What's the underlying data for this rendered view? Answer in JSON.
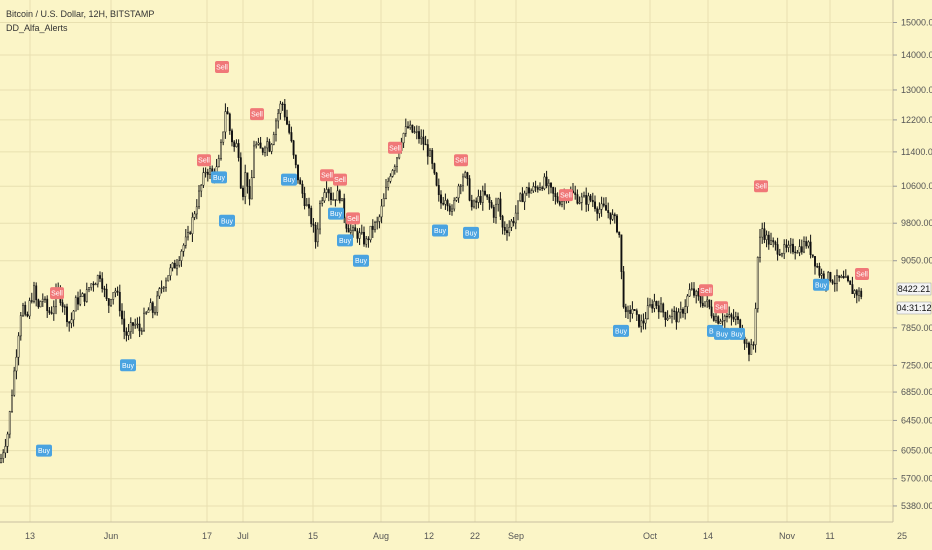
{
  "header": {
    "symbol_line": "Bitcoin / U.S. Dollar, 12H, BITSTAMP",
    "indicator": "DD_Alfa_Alerts"
  },
  "price_axis": {
    "last_price": "8422.21",
    "countdown": "04:31:12"
  },
  "colors": {
    "background": "#fbf5c7",
    "grid": "#e8e0b0",
    "candle": "#111111",
    "sell": "#f07878",
    "buy": "#4aa3e0",
    "last_price_bg": "#f4f4f4"
  },
  "chart_data": {
    "type": "candlestick",
    "title": "Bitcoin / U.S. Dollar, 12H, BITSTAMP",
    "y_ticks": [
      5380,
      5700,
      6050,
      6450,
      6850,
      7250,
      7850,
      8422.21,
      9050,
      9800,
      10600,
      11400,
      12200,
      13000,
      14000,
      15000
    ],
    "ylim": [
      5200,
      15600
    ],
    "y_scale": "log",
    "x_ticks": [
      "13",
      "Jun",
      "17",
      "Jul",
      "15",
      "Aug",
      "12",
      "22",
      "Sep",
      "Oct",
      "14",
      "Nov",
      "11",
      "25"
    ],
    "grid": true,
    "anchors": [
      [
        0,
        5900
      ],
      [
        8,
        6300
      ],
      [
        16,
        7400
      ],
      [
        22,
        8300
      ],
      [
        26,
        7900
      ],
      [
        30,
        8300
      ],
      [
        34,
        8500
      ],
      [
        38,
        8150
      ],
      [
        42,
        8400
      ],
      [
        48,
        8100
      ],
      [
        52,
        8150
      ],
      [
        58,
        8500
      ],
      [
        62,
        8300
      ],
      [
        66,
        8100
      ],
      [
        70,
        7900
      ],
      [
        76,
        8300
      ],
      [
        80,
        8350
      ],
      [
        86,
        8400
      ],
      [
        90,
        8600
      ],
      [
        96,
        8700
      ],
      [
        100,
        8800
      ],
      [
        104,
        8500
      ],
      [
        108,
        8200
      ],
      [
        112,
        8500
      ],
      [
        116,
        8500
      ],
      [
        120,
        8200
      ],
      [
        124,
        7800
      ],
      [
        128,
        7700
      ],
      [
        132,
        7900
      ],
      [
        136,
        7900
      ],
      [
        140,
        7800
      ],
      [
        144,
        8000
      ],
      [
        150,
        8200
      ],
      [
        154,
        8100
      ],
      [
        160,
        8500
      ],
      [
        168,
        8800
      ],
      [
        176,
        9000
      ],
      [
        182,
        9300
      ],
      [
        188,
        9500
      ],
      [
        194,
        10000
      ],
      [
        200,
        10500
      ],
      [
        206,
        11000
      ],
      [
        212,
        10900
      ],
      [
        218,
        11000
      ],
      [
        222,
        11700
      ],
      [
        226,
        12600
      ],
      [
        230,
        11900
      ],
      [
        234,
        11500
      ],
      [
        238,
        11600
      ],
      [
        242,
        10300
      ],
      [
        246,
        11000
      ],
      [
        250,
        10100
      ],
      [
        254,
        11600
      ],
      [
        258,
        11500
      ],
      [
        262,
        11400
      ],
      [
        266,
        11700
      ],
      [
        270,
        11500
      ],
      [
        276,
        12200
      ],
      [
        282,
        12700
      ],
      [
        286,
        12200
      ],
      [
        290,
        11800
      ],
      [
        294,
        11200
      ],
      [
        300,
        10600
      ],
      [
        306,
        10200
      ],
      [
        312,
        9800
      ],
      [
        316,
        9400
      ],
      [
        320,
        10200
      ],
      [
        326,
        10700
      ],
      [
        332,
        10300
      ],
      [
        336,
        10400
      ],
      [
        340,
        10400
      ],
      [
        346,
        9800
      ],
      [
        352,
        9600
      ],
      [
        356,
        9600
      ],
      [
        362,
        9500
      ],
      [
        366,
        9400
      ],
      [
        372,
        9700
      ],
      [
        378,
        9800
      ],
      [
        384,
        10300
      ],
      [
        390,
        10900
      ],
      [
        396,
        11200
      ],
      [
        402,
        11800
      ],
      [
        408,
        12000
      ],
      [
        412,
        11900
      ],
      [
        418,
        11800
      ],
      [
        424,
        11600
      ],
      [
        430,
        11300
      ],
      [
        436,
        10600
      ],
      [
        440,
        10200
      ],
      [
        446,
        10400
      ],
      [
        452,
        10000
      ],
      [
        458,
        10600
      ],
      [
        464,
        10900
      ],
      [
        468,
        10600
      ],
      [
        472,
        10100
      ],
      [
        478,
        10300
      ],
      [
        484,
        10400
      ],
      [
        490,
        10200
      ],
      [
        494,
        10000
      ],
      [
        498,
        10300
      ],
      [
        502,
        9700
      ],
      [
        508,
        9700
      ],
      [
        514,
        9900
      ],
      [
        520,
        10300
      ],
      [
        526,
        10500
      ],
      [
        532,
        10500
      ],
      [
        538,
        10600
      ],
      [
        544,
        10700
      ],
      [
        550,
        10500
      ],
      [
        556,
        10300
      ],
      [
        562,
        10300
      ],
      [
        568,
        10500
      ],
      [
        574,
        10400
      ],
      [
        580,
        10300
      ],
      [
        586,
        10300
      ],
      [
        592,
        10300
      ],
      [
        598,
        10100
      ],
      [
        604,
        10100
      ],
      [
        610,
        10000
      ],
      [
        616,
        9800
      ],
      [
        620,
        9500
      ],
      [
        622,
        8500
      ],
      [
        626,
        8000
      ],
      [
        632,
        8200
      ],
      [
        636,
        8000
      ],
      [
        642,
        7900
      ],
      [
        648,
        8150
      ],
      [
        654,
        8300
      ],
      [
        660,
        8200
      ],
      [
        666,
        8050
      ],
      [
        672,
        8100
      ],
      [
        678,
        8000
      ],
      [
        684,
        8200
      ],
      [
        690,
        8500
      ],
      [
        696,
        8400
      ],
      [
        700,
        8300
      ],
      [
        706,
        8300
      ],
      [
        712,
        8100
      ],
      [
        718,
        8000
      ],
      [
        724,
        8050
      ],
      [
        730,
        8000
      ],
      [
        736,
        8000
      ],
      [
        742,
        7800
      ],
      [
        746,
        7600
      ],
      [
        750,
        7450
      ],
      [
        754,
        7600
      ],
      [
        758,
        9200
      ],
      [
        762,
        9700
      ],
      [
        766,
        9500
      ],
      [
        770,
        9400
      ],
      [
        776,
        9300
      ],
      [
        782,
        9250
      ],
      [
        788,
        9250
      ],
      [
        794,
        9300
      ],
      [
        800,
        9300
      ],
      [
        806,
        9400
      ],
      [
        812,
        9200
      ],
      [
        816,
        9000
      ],
      [
        820,
        8800
      ],
      [
        826,
        8700
      ],
      [
        830,
        8750
      ],
      [
        836,
        8650
      ],
      [
        840,
        8700
      ],
      [
        846,
        8650
      ],
      [
        852,
        8500
      ],
      [
        858,
        8450
      ],
      [
        862,
        8422
      ]
    ],
    "signals": [
      {
        "label": "Buy",
        "x": 44,
        "y": 6050
      },
      {
        "label": "Sell",
        "x": 57,
        "y": 8450
      },
      {
        "label": "Buy",
        "x": 128,
        "y": 7250
      },
      {
        "label": "Sell",
        "x": 204,
        "y": 11200
      },
      {
        "label": "Buy",
        "x": 219,
        "y": 10800
      },
      {
        "label": "Buy",
        "x": 227,
        "y": 9850
      },
      {
        "label": "Sell",
        "x": 222,
        "y": 13650
      },
      {
        "label": "Sell",
        "x": 257,
        "y": 12350
      },
      {
        "label": "Buy",
        "x": 289,
        "y": 10750
      },
      {
        "label": "Sell",
        "x": 327,
        "y": 10850
      },
      {
        "label": "Sell",
        "x": 340,
        "y": 10750
      },
      {
        "label": "Buy",
        "x": 336,
        "y": 10000
      },
      {
        "label": "Sell",
        "x": 353,
        "y": 9900
      },
      {
        "label": "Buy",
        "x": 345,
        "y": 9450
      },
      {
        "label": "Buy",
        "x": 361,
        "y": 9050
      },
      {
        "label": "Sell",
        "x": 395,
        "y": 11500
      },
      {
        "label": "Sell",
        "x": 461,
        "y": 11200
      },
      {
        "label": "Buy",
        "x": 440,
        "y": 9650
      },
      {
        "label": "Buy",
        "x": 471,
        "y": 9600
      },
      {
        "label": "Sell",
        "x": 566,
        "y": 10400
      },
      {
        "label": "Buy",
        "x": 621,
        "y": 7800
      },
      {
        "label": "Sell",
        "x": 706,
        "y": 8500
      },
      {
        "label": "Sell",
        "x": 721,
        "y": 8200
      },
      {
        "label": "Buy",
        "x": 715,
        "y": 7800
      },
      {
        "label": "Buy",
        "x": 722,
        "y": 7750
      },
      {
        "label": "Buy",
        "x": 737,
        "y": 7750
      },
      {
        "label": "Sell",
        "x": 761,
        "y": 10600
      },
      {
        "label": "Buy",
        "x": 821,
        "y": 8600
      },
      {
        "label": "Sell",
        "x": 862,
        "y": 8800
      }
    ]
  }
}
